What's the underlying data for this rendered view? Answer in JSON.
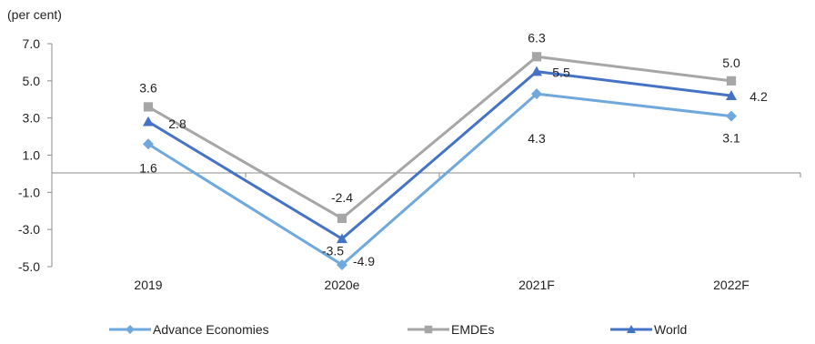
{
  "chart_data": {
    "type": "line",
    "unit_label": "(per cent)",
    "categories": [
      "2019",
      "2020e",
      "2021F",
      "2022F"
    ],
    "ylim": [
      -5.0,
      7.0
    ],
    "yticks": [
      "7.0",
      "5.0",
      "3.0",
      "1.0",
      "-1.0",
      "-3.0",
      "-5.0"
    ],
    "ytick_values": [
      7,
      5,
      3,
      1,
      -1,
      -3,
      -5
    ],
    "grid": false,
    "legend_position": "bottom",
    "series": [
      {
        "name": "Advance Economies",
        "values": [
          1.6,
          -4.9,
          4.3,
          3.1
        ],
        "labels": [
          "1.6",
          "-4.9",
          "4.3",
          "3.1"
        ],
        "color": "#6fa8dc",
        "marker": "diamond"
      },
      {
        "name": "EMDEs",
        "values": [
          3.6,
          -2.4,
          6.3,
          5.0
        ],
        "labels": [
          "3.6",
          "-2.4",
          "6.3",
          "5.0"
        ],
        "color": "#a6a6a6",
        "marker": "square"
      },
      {
        "name": "World",
        "values": [
          2.8,
          -3.5,
          5.5,
          4.2
        ],
        "labels": [
          "2.8",
          "-3.5",
          "5.5",
          "4.2"
        ],
        "color": "#4472c4",
        "marker": "triangle"
      }
    ]
  }
}
